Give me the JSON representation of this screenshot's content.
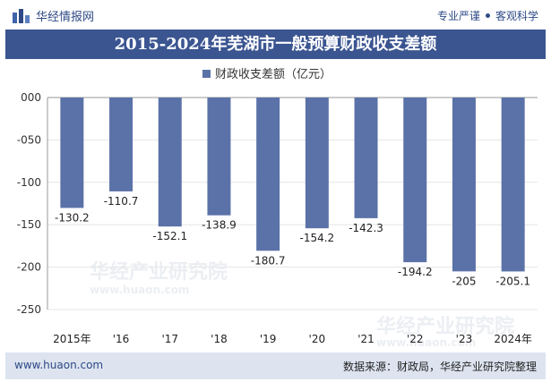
{
  "header": {
    "brand": "华经情报网",
    "tags": [
      "专业严谨",
      "客观科学"
    ]
  },
  "chart_data": {
    "type": "bar",
    "title": "2015-2024年芜湖市一般预算财政收支差额",
    "series": [
      {
        "name": "财政收支差额（亿元）",
        "values": [
          -130.2,
          -110.7,
          -152.1,
          -138.9,
          -180.7,
          -154.2,
          -142.3,
          -194.2,
          -205,
          -205.1
        ]
      }
    ],
    "categories": [
      "2015年",
      "'16",
      "'17",
      "'18",
      "'19",
      "'20",
      "'21",
      "'22",
      "'23",
      "2024年"
    ],
    "value_labels": [
      "-130.2",
      "-110.7",
      "-152.1",
      "-138.9",
      "-180.7",
      "-154.2",
      "-142.3",
      "-194.2",
      "-205",
      "-205.1"
    ],
    "y_ticks": [
      "000",
      "-050",
      "-100",
      "-150",
      "-200",
      "-250"
    ],
    "ylim": [
      -250,
      0
    ],
    "bar_color": "#5b72a8",
    "legend_position": "top-center"
  },
  "footer": {
    "website": "www.huaon.com",
    "source": "数据来源：财政局，华经产业研究院整理"
  },
  "watermark": {
    "text": "华经产业研究院",
    "url": "www.huaon.com"
  }
}
